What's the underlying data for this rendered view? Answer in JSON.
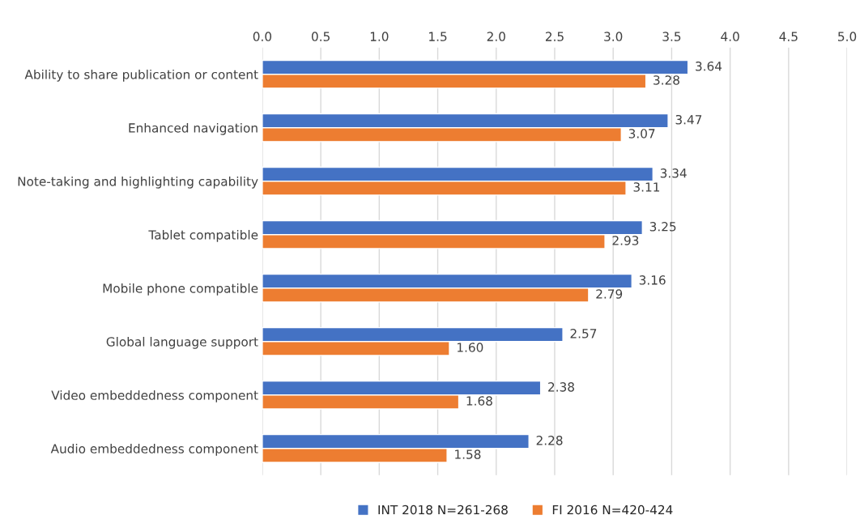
{
  "chart_data": {
    "type": "bar",
    "orientation": "horizontal",
    "categories": [
      "Ability to share publication or content",
      "Enhanced navigation",
      "Note-taking and highlighting capability",
      "Tablet compatible",
      "Mobile phone compatible",
      "Global language support",
      "Video embeddedness component",
      "Audio embeddedness component"
    ],
    "series": [
      {
        "name": "INT 2018 N=261-268",
        "color": "#4472c4",
        "values": [
          3.64,
          3.47,
          3.34,
          3.25,
          3.16,
          2.57,
          2.38,
          2.28
        ],
        "value_labels": [
          "3.64",
          "3.47",
          "3.34",
          "3.25",
          "3.16",
          "2.57",
          "2.38",
          "2.28"
        ]
      },
      {
        "name": "FI 2016 N=420-424",
        "color": "#ed7d31",
        "values": [
          3.28,
          3.07,
          3.11,
          2.93,
          2.79,
          1.6,
          1.68,
          1.58
        ],
        "value_labels": [
          "3.28",
          "3.07",
          "3.11",
          "2.93",
          "2.79",
          "1.60",
          "1.68",
          "1.58"
        ]
      }
    ],
    "xlim": [
      0,
      5
    ],
    "xticks": [
      {
        "value": 0,
        "label": "0.0"
      },
      {
        "value": 0.5,
        "label": "0.5"
      },
      {
        "value": 1,
        "label": "1.0"
      },
      {
        "value": 1.5,
        "label": "1.5"
      },
      {
        "value": 2,
        "label": "2.0"
      },
      {
        "value": 2.5,
        "label": "2.5"
      },
      {
        "value": 3,
        "label": "3.0"
      },
      {
        "value": 3.5,
        "label": "3.5"
      },
      {
        "value": 4,
        "label": "4.0"
      },
      {
        "value": 4.5,
        "label": "4.5"
      },
      {
        "value": 5,
        "label": "5.0"
      }
    ],
    "grid": "x",
    "legend": "bottom"
  }
}
